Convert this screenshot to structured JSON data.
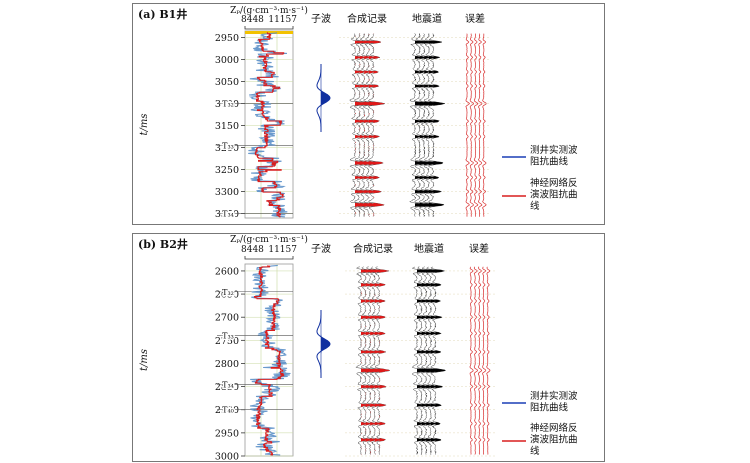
{
  "panels": [
    {
      "id": "a",
      "label": "(a) B1井",
      "impedance_label": "Zₚ/(g·cm⁻³·m·s⁻¹)",
      "impedance_min": "8448",
      "impedance_max": "11157",
      "wavelet_label": "子波",
      "col_synthetic": "合成记录",
      "col_seismic": "地震道",
      "col_error": "误差",
      "ylabel": "t/ms",
      "legend_measured": "测井实测波阻抗曲线",
      "legend_inverted": "神经网络反演波阻抗曲线",
      "horizons": [
        {
          "name": "T₃₂",
          "t": 3100
        },
        {
          "name": "T₃₃",
          "t": 3195
        },
        {
          "name": "T₃₄",
          "t": 3350
        }
      ]
    },
    {
      "id": "b",
      "label": "(b) B2井",
      "impedance_label": "Zₚ/(g·cm⁻³·m·s⁻¹)",
      "impedance_min": "8448",
      "impedance_max": "11157",
      "wavelet_label": "子波",
      "col_synthetic": "合成记录",
      "col_seismic": "地震道",
      "col_error": "误差",
      "ylabel": "t/ms",
      "legend_measured": "测井实测波阻抗曲线",
      "legend_inverted": "神经网络反演波阻抗曲线",
      "horizons": [
        {
          "name": "T₃₂",
          "t": 2645
        },
        {
          "name": "T₃₃",
          "t": 2740
        },
        {
          "name": "T₃₄",
          "t": 2845
        },
        {
          "name": "T₄₀",
          "t": 2900
        }
      ]
    }
  ],
  "chart_data": [
    {
      "type": "line",
      "title": "(a) B1井",
      "ylabel": "t/ms",
      "xlabel": "Zₚ/(g·cm⁻³·m·s⁻¹)",
      "xlim": [
        8448,
        11157
      ],
      "ylim": [
        2935,
        3360
      ],
      "yticks": [
        2950,
        3000,
        3050,
        3100,
        3150,
        3200,
        3250,
        3300,
        3350
      ],
      "series": [
        {
          "name": "测井实测波阻抗曲线",
          "color": "#1a3fb5"
        },
        {
          "name": "神经网络反演波阻抗曲线",
          "color": "#d81e1e"
        }
      ]
    },
    {
      "type": "line",
      "title": "(b) B2井",
      "ylabel": "t/ms",
      "xlabel": "Zₚ/(g·cm⁻³·m·s⁻¹)",
      "xlim": [
        8448,
        11157
      ],
      "ylim": [
        2585,
        3000
      ],
      "yticks": [
        2600,
        2650,
        2700,
        2750,
        2800,
        2850,
        2900,
        2950,
        3000
      ],
      "series": [
        {
          "name": "测井实测波阻抗曲线",
          "color": "#1a3fb5"
        },
        {
          "name": "神经网络反演波阻抗曲线",
          "color": "#d81e1e"
        }
      ]
    }
  ],
  "colors": {
    "measured": "#1a3fb5",
    "inverted": "#d81e1e",
    "synthetic": "#e01818",
    "seismic": "#000000",
    "wavelet": "#1030a0",
    "grid": "#c8d8a0",
    "marker": "#f2c200"
  }
}
